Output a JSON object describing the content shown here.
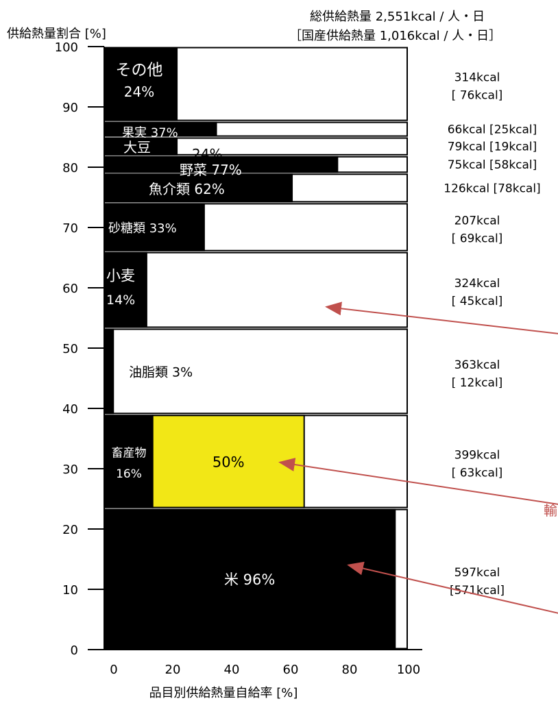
{
  "header": {
    "total_line": "総供給熱量 2,551kcal / 人・日",
    "domestic_line": "［国産供給熱量 1,016kcal / 人・日］"
  },
  "chart_data": {
    "type": "bar",
    "subtype": "variwide",
    "xlabel": "品目別供給熱量自給率 [%]",
    "ylabel": "供給熱量割合 [%]",
    "xlim": [
      0,
      100
    ],
    "ylim": [
      0,
      100
    ],
    "xticks": [
      "0",
      "20",
      "40",
      "60",
      "80",
      "100"
    ],
    "yticks": [
      "0",
      "10",
      "20",
      "30",
      "40",
      "50",
      "60",
      "70",
      "80",
      "90",
      "100"
    ],
    "grid": false,
    "colors": {
      "domestic": "#000000",
      "highlight": "#f2e716",
      "import": "#ffffff",
      "arrow": "#c0504d"
    },
    "items": [
      {
        "name": "米",
        "self_sufficiency": 96,
        "y_start": 0,
        "y_end": 23.4,
        "label": "米 96%",
        "kcal": "597kcal",
        "domestic_kcal": "[571kcal]"
      },
      {
        "name": "畜産物",
        "self_sufficiency": 16,
        "y_start": 23.4,
        "y_end": 39.0,
        "label": "畜産物",
        "sub_label": "16%",
        "extra_pct": 50,
        "extra_label": "50%",
        "kcal": "399kcal",
        "domestic_kcal": "[ 63kcal]"
      },
      {
        "name": "油脂類",
        "self_sufficiency": 3,
        "y_start": 39.0,
        "y_end": 53.3,
        "label": "油脂類 3%",
        "kcal": "363kcal",
        "domestic_kcal": "[ 12kcal]"
      },
      {
        "name": "小麦",
        "self_sufficiency": 14,
        "y_start": 53.3,
        "y_end": 66.0,
        "label": "小麦",
        "sub_label": "14%",
        "kcal": "324kcal",
        "domestic_kcal": "[ 45kcal]"
      },
      {
        "name": "砂糖類",
        "self_sufficiency": 33,
        "y_start": 66.0,
        "y_end": 74.1,
        "label": "砂糖類 33%",
        "kcal": "207kcal",
        "domestic_kcal": "[ 69kcal]"
      },
      {
        "name": "魚介類",
        "self_sufficiency": 62,
        "y_start": 74.1,
        "y_end": 79.0,
        "label": "魚介類 62%",
        "kcal": "126kcal [78kcal]"
      },
      {
        "name": "野菜",
        "self_sufficiency": 77,
        "y_start": 79.0,
        "y_end": 81.9,
        "label": "野菜 77%",
        "kcal": "75kcal [58kcal]"
      },
      {
        "name": "大豆",
        "self_sufficiency": 24,
        "y_start": 81.9,
        "y_end": 85.0,
        "label": "大豆",
        "sub_label": "24%",
        "kcal": "79kcal [19kcal]"
      },
      {
        "name": "果実",
        "self_sufficiency": 37,
        "y_start": 85.0,
        "y_end": 87.6,
        "label": "果実 37%",
        "kcal": "66kcal [25kcal]"
      },
      {
        "name": "その他",
        "self_sufficiency": 24,
        "y_start": 87.6,
        "y_end": 100,
        "label": "その他",
        "sub_label": "24%",
        "kcal": "314kcal",
        "domestic_kcal": "[ 76kcal]"
      }
    ],
    "annotations": [
      "輸"
    ]
  }
}
